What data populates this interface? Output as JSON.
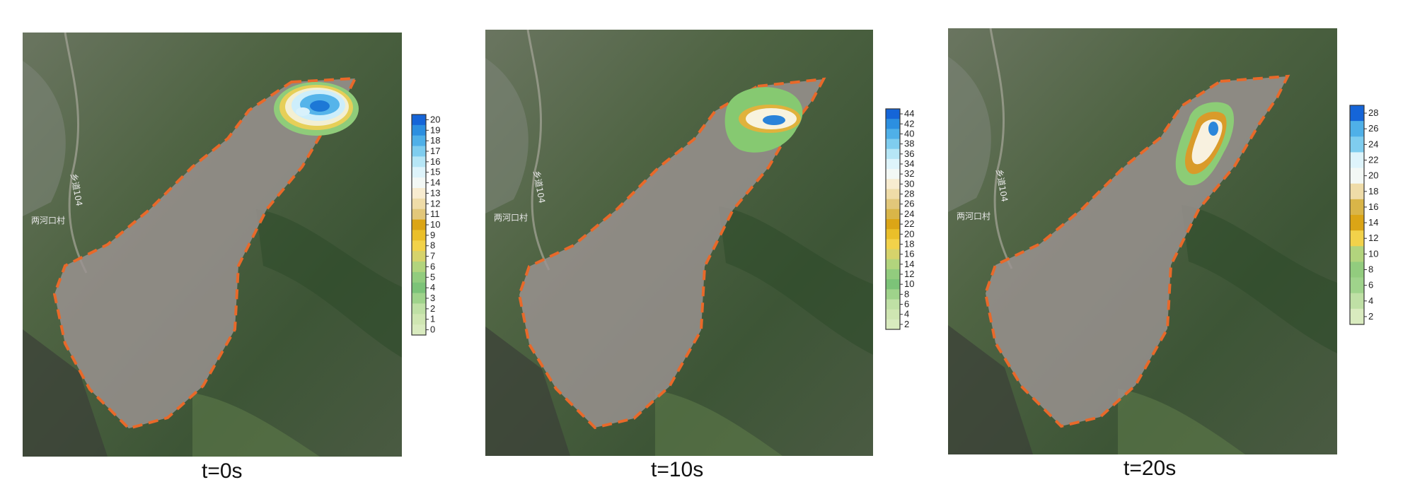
{
  "panels": [
    {
      "caption": "t=0s",
      "place_label_1": "两河口村",
      "place_label_2": "乡道104",
      "colorbar_ticks": [
        "20",
        "19",
        "18",
        "17",
        "16",
        "15",
        "14",
        "13",
        "12",
        "11",
        "10",
        "9",
        "8",
        "7",
        "6",
        "5",
        "4",
        "3",
        "2",
        "1",
        "0"
      ],
      "blob_type": "initial"
    },
    {
      "caption": "t=10s",
      "place_label_1": "两河口村",
      "place_label_2": "乡道104",
      "colorbar_ticks": [
        "44",
        "42",
        "40",
        "38",
        "36",
        "34",
        "32",
        "30",
        "28",
        "26",
        "24",
        "22",
        "20",
        "18",
        "16",
        "14",
        "12",
        "10",
        "8",
        "6",
        "4",
        "2"
      ],
      "blob_type": "mid"
    },
    {
      "caption": "t=20s",
      "place_label_1": "两河口村",
      "place_label_2": "乡道104",
      "colorbar_ticks": [
        "28",
        "26",
        "24",
        "22",
        "20",
        "18",
        "16",
        "14",
        "12",
        "10",
        "8",
        "6",
        "4",
        "2"
      ],
      "blob_type": "late"
    }
  ],
  "colors": {
    "outline": "#e8692a",
    "deposit": "#9c9493"
  }
}
